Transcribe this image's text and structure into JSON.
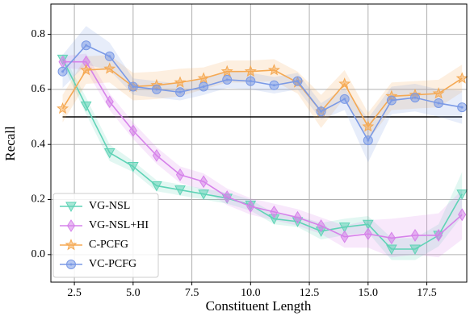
{
  "chart_data": {
    "type": "line",
    "xlabel": "Constituent Length",
    "ylabel": "Recall",
    "x": [
      2,
      3,
      4,
      5,
      6,
      7,
      8,
      9,
      10,
      11,
      12,
      13,
      14,
      15,
      16,
      17,
      18,
      19
    ],
    "series": [
      {
        "name": "VG-NSL",
        "color": "#5fd3b6",
        "marker": "triangle-down",
        "values": [
          0.71,
          0.54,
          0.37,
          0.32,
          0.25,
          0.235,
          0.22,
          0.205,
          0.18,
          0.13,
          0.12,
          0.085,
          0.1,
          0.11,
          0.02,
          0.02,
          0.07,
          0.22
        ],
        "std": [
          0.02,
          0.03,
          0.03,
          0.02,
          0.02,
          0.02,
          0.02,
          0.02,
          0.02,
          0.02,
          0.02,
          0.03,
          0.03,
          0.03,
          0.04,
          0.04,
          0.04,
          0.08
        ]
      },
      {
        "name": "VG-NSL+HI",
        "color": "#d682ea",
        "marker": "diamond",
        "values": [
          0.7,
          0.7,
          0.555,
          0.45,
          0.36,
          0.29,
          0.265,
          0.21,
          0.175,
          0.155,
          0.135,
          0.105,
          0.065,
          0.075,
          0.06,
          0.07,
          0.07,
          0.145
        ],
        "std": [
          0.02,
          0.03,
          0.03,
          0.03,
          0.03,
          0.03,
          0.03,
          0.03,
          0.03,
          0.03,
          0.03,
          0.03,
          0.04,
          0.05,
          0.07,
          0.07,
          0.08,
          0.09
        ]
      },
      {
        "name": "C-PCFG",
        "color": "#f5a953",
        "marker": "star",
        "values": [
          0.53,
          0.67,
          0.675,
          0.61,
          0.615,
          0.625,
          0.64,
          0.665,
          0.665,
          0.67,
          0.625,
          0.52,
          0.62,
          0.465,
          0.575,
          0.58,
          0.585,
          0.64
        ],
        "std": [
          0.05,
          0.05,
          0.05,
          0.05,
          0.05,
          0.05,
          0.04,
          0.04,
          0.04,
          0.04,
          0.04,
          0.06,
          0.05,
          0.05,
          0.05,
          0.05,
          0.05,
          0.05
        ]
      },
      {
        "name": "VC-PCFG",
        "color": "#7b9ae6",
        "marker": "circle",
        "values": [
          0.665,
          0.76,
          0.72,
          0.61,
          0.6,
          0.59,
          0.61,
          0.635,
          0.63,
          0.615,
          0.63,
          0.52,
          0.565,
          0.415,
          0.56,
          0.57,
          0.55,
          0.535
        ],
        "std": [
          0.06,
          0.07,
          0.05,
          0.03,
          0.03,
          0.03,
          0.03,
          0.03,
          0.03,
          0.03,
          0.03,
          0.03,
          0.04,
          0.08,
          0.05,
          0.05,
          0.05,
          0.06
        ]
      }
    ],
    "reference_line": {
      "y": 0.5,
      "xmin": 2,
      "xmax": 19,
      "color": "#000000"
    },
    "xlim": [
      1.5,
      19.2
    ],
    "ylim": [
      -0.1,
      0.91
    ],
    "xticks": [
      2.5,
      {
        "value": 5,
        "label": "5.0"
      },
      7.5,
      {
        "value": 10,
        "label": "10.0"
      },
      12.5,
      {
        "value": 15,
        "label": "15.0"
      },
      17.5
    ],
    "yticks": [
      {
        "value": 0,
        "label": "0.0"
      },
      0.2,
      0.4,
      0.6,
      0.8
    ],
    "grid": true,
    "legend": "lower left"
  }
}
